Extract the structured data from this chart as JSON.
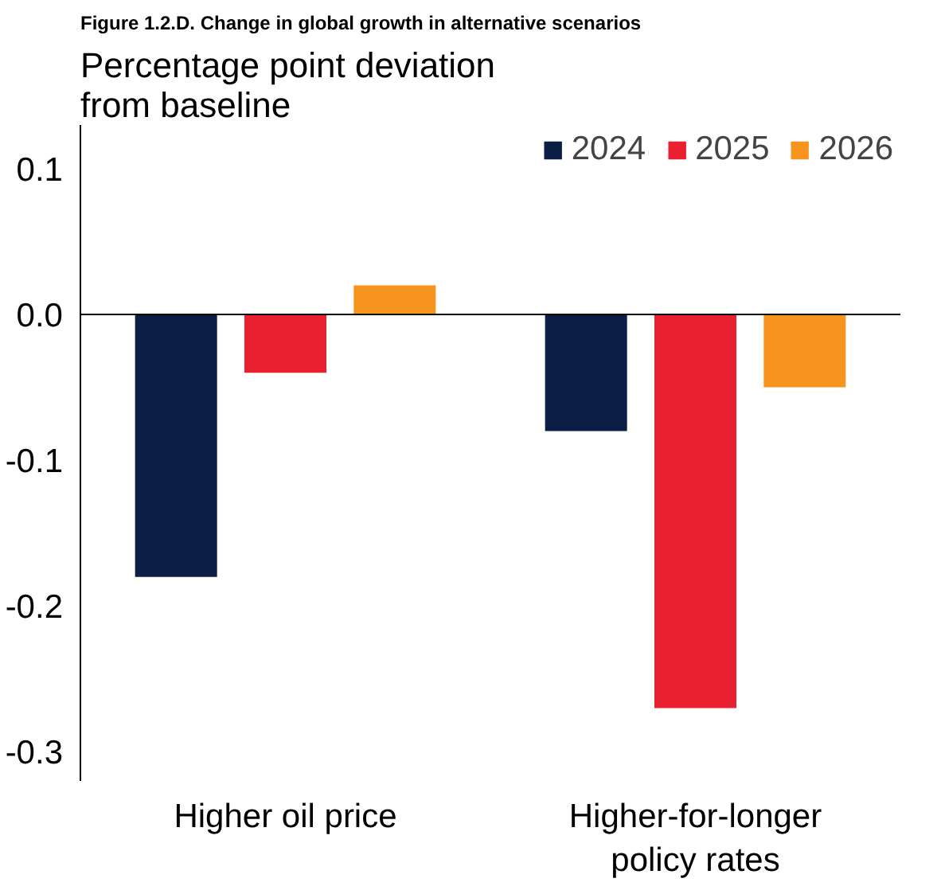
{
  "chart_data": {
    "type": "bar",
    "title": "Figure 1.2.D. Change in global growth in alternative scenarios",
    "ylabel": "Percentage point deviation from baseline",
    "categories": [
      "Higher oil price",
      "Higher-for-longer policy rates"
    ],
    "series": [
      {
        "name": "2024",
        "color": "#0b1f45",
        "values": [
          -0.18,
          -0.08
        ]
      },
      {
        "name": "2025",
        "color": "#e8202f",
        "values": [
          -0.04,
          -0.27
        ]
      },
      {
        "name": "2026",
        "color": "#f7941d",
        "values": [
          0.02,
          -0.05
        ]
      }
    ],
    "ylim": [
      -0.32,
      0.13
    ],
    "yticks": [
      {
        "value": 0.1,
        "label": "0.1"
      },
      {
        "value": 0.0,
        "label": "0.0"
      },
      {
        "value": -0.1,
        "label": "-0.1"
      },
      {
        "value": -0.2,
        "label": "-0.2"
      },
      {
        "value": -0.3,
        "label": "-0.3"
      }
    ],
    "ref_lines": [
      {
        "axis": "y",
        "value": 0,
        "label": null,
        "color": "#000000"
      }
    ],
    "grid": false,
    "legend": "top right"
  }
}
